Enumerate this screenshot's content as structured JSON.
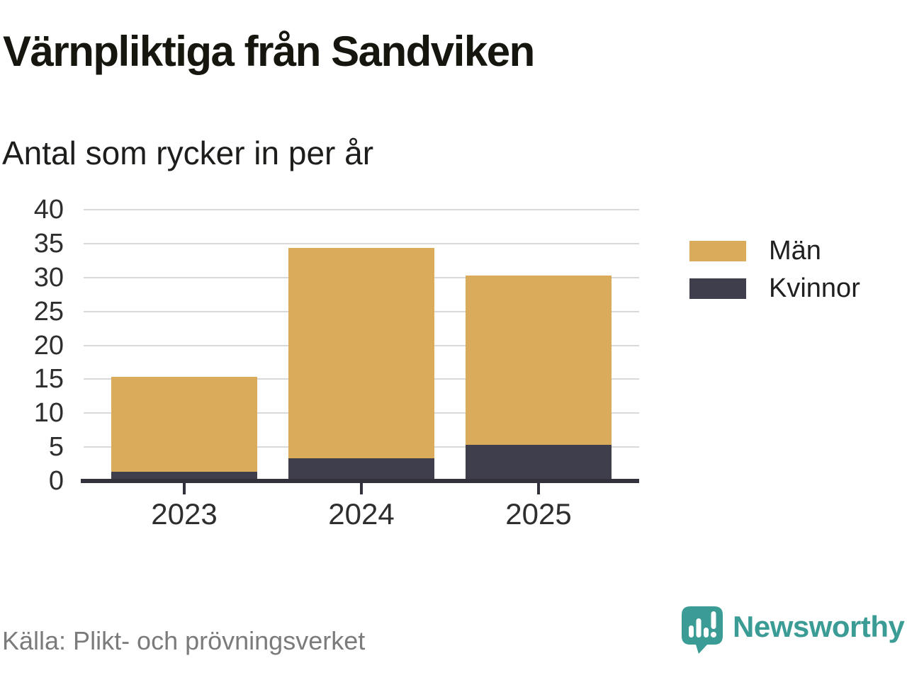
{
  "header": {
    "title": "Värnpliktiga från Sandviken",
    "subtitle": "Antal som rycker in per år"
  },
  "legend": {
    "items": [
      {
        "label": "Män",
        "color": "#d9ab5b"
      },
      {
        "label": "Kvinnor",
        "color": "#3f3e4d"
      }
    ]
  },
  "footer": {
    "source": "Källa: Plikt- och prövningsverket",
    "brand": "Newsworthy"
  },
  "colors": {
    "men_gold": "#d9ab5b",
    "women_dark": "#3f3e4d",
    "axis": "#33323c",
    "gridline": "#d9d9d9",
    "brand_teal": "#3b9c95",
    "source_gray": "#7b7b7b"
  },
  "chart_data": {
    "type": "bar",
    "stacked": true,
    "title": "Värnpliktiga från Sandviken",
    "subtitle": "Antal som rycker in per år",
    "categories": [
      "2023",
      "2024",
      "2025"
    ],
    "series": [
      {
        "name": "Män",
        "color": "#d9ab5b",
        "values": [
          14,
          31,
          25
        ]
      },
      {
        "name": "Kvinnor",
        "color": "#3f3e4d",
        "values": [
          1,
          3,
          5
        ]
      }
    ],
    "totals": [
      15,
      34,
      30
    ],
    "stack_order_bottom_to_top": [
      "Kvinnor",
      "Män"
    ],
    "xlabel": "",
    "ylabel": "",
    "ylim": [
      0,
      40
    ],
    "yticks": [
      0,
      5,
      10,
      15,
      20,
      25,
      30,
      35,
      40
    ],
    "grid": true,
    "legend_position": "right"
  }
}
